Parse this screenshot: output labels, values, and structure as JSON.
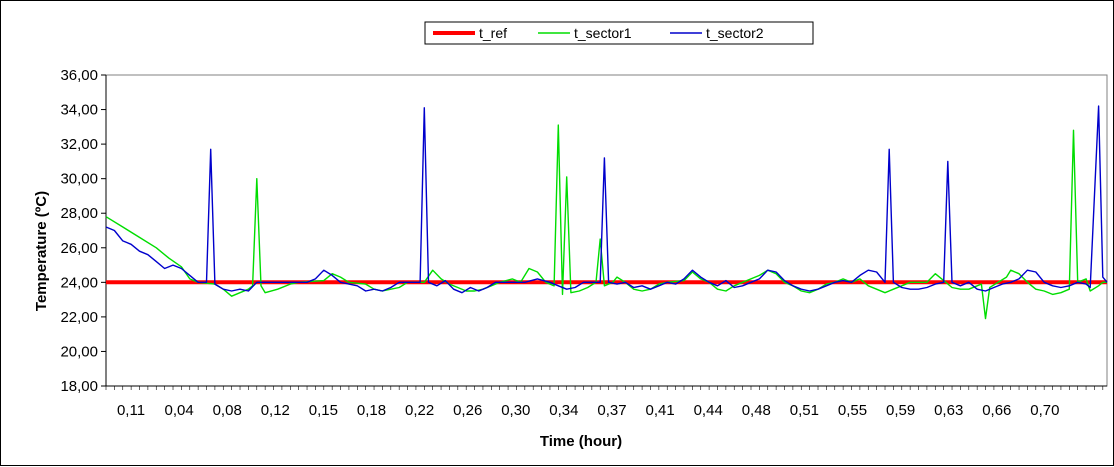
{
  "chart_data": {
    "type": "line",
    "title": "",
    "xlabel": "Time (hour)",
    "ylabel": "Temperature (ºC)",
    "ylim": [
      18,
      36
    ],
    "ytick_step": 2,
    "yticks": [
      "18,00",
      "20,00",
      "22,00",
      "24,00",
      "26,00",
      "28,00",
      "30,00",
      "32,00",
      "34,00",
      "36,00"
    ],
    "xtick_labels": [
      "0,11",
      "0,04",
      "0,08",
      "0,12",
      "0,15",
      "0,18",
      "0,22",
      "0,26",
      "0,30",
      "0,34",
      "0,37",
      "0,41",
      "0,44",
      "0,48",
      "0,51",
      "0,55",
      "0,59",
      "0,63",
      "0,66",
      "0,70"
    ],
    "n_samples": 240,
    "grid": false,
    "legend_position": "top-center",
    "series": [
      {
        "name": "t_ref",
        "color": "#ff0000",
        "style": "thick",
        "points": [
          [
            0,
            24.0
          ],
          [
            239,
            24.0
          ]
        ]
      },
      {
        "name": "t_sector1",
        "color": "#00dd00",
        "style": "thin",
        "points": [
          [
            0,
            27.8
          ],
          [
            4,
            27.2
          ],
          [
            8,
            26.6
          ],
          [
            12,
            26.0
          ],
          [
            15,
            25.4
          ],
          [
            18,
            24.9
          ],
          [
            20,
            24.2
          ],
          [
            22,
            24.0
          ],
          [
            26,
            23.9
          ],
          [
            28,
            23.6
          ],
          [
            30,
            23.2
          ],
          [
            32,
            23.4
          ],
          [
            34,
            23.6
          ],
          [
            35,
            23.8
          ],
          [
            36,
            30.0
          ],
          [
            37,
            23.8
          ],
          [
            38,
            23.4
          ],
          [
            41,
            23.6
          ],
          [
            44,
            23.9
          ],
          [
            46,
            24.0
          ],
          [
            52,
            24.1
          ],
          [
            54,
            24.5
          ],
          [
            56,
            24.3
          ],
          [
            58,
            24.0
          ],
          [
            62,
            23.9
          ],
          [
            64,
            23.6
          ],
          [
            66,
            23.5
          ],
          [
            68,
            23.6
          ],
          [
            70,
            23.7
          ],
          [
            72,
            24.0
          ],
          [
            76,
            24.0
          ],
          [
            78,
            24.7
          ],
          [
            80,
            24.2
          ],
          [
            82,
            23.9
          ],
          [
            84,
            23.7
          ],
          [
            86,
            23.5
          ],
          [
            88,
            23.5
          ],
          [
            90,
            23.6
          ],
          [
            92,
            23.8
          ],
          [
            94,
            24.0
          ],
          [
            97,
            24.2
          ],
          [
            99,
            24.0
          ],
          [
            101,
            24.8
          ],
          [
            103,
            24.6
          ],
          [
            105,
            24.0
          ],
          [
            107,
            23.8
          ],
          [
            108,
            33.1
          ],
          [
            109,
            23.3
          ],
          [
            110,
            30.1
          ],
          [
            111,
            23.4
          ],
          [
            113,
            23.5
          ],
          [
            115,
            23.7
          ],
          [
            117,
            24.0
          ],
          [
            118,
            26.5
          ],
          [
            119,
            23.8
          ],
          [
            121,
            24.0
          ],
          [
            122,
            24.3
          ],
          [
            124,
            24.0
          ],
          [
            126,
            23.6
          ],
          [
            128,
            23.5
          ],
          [
            130,
            23.6
          ],
          [
            132,
            23.9
          ],
          [
            134,
            24.0
          ],
          [
            138,
            24.1
          ],
          [
            140,
            24.6
          ],
          [
            142,
            24.2
          ],
          [
            144,
            24.0
          ],
          [
            146,
            23.6
          ],
          [
            148,
            23.5
          ],
          [
            150,
            23.8
          ],
          [
            152,
            24.0
          ],
          [
            156,
            24.4
          ],
          [
            158,
            24.7
          ],
          [
            160,
            24.5
          ],
          [
            162,
            24.0
          ],
          [
            164,
            23.8
          ],
          [
            166,
            23.5
          ],
          [
            168,
            23.4
          ],
          [
            170,
            23.6
          ],
          [
            172,
            23.9
          ],
          [
            174,
            24.0
          ],
          [
            176,
            24.2
          ],
          [
            178,
            24.0
          ],
          [
            180,
            24.2
          ],
          [
            182,
            23.8
          ],
          [
            184,
            23.6
          ],
          [
            186,
            23.4
          ],
          [
            188,
            23.6
          ],
          [
            190,
            23.8
          ],
          [
            192,
            24.0
          ],
          [
            196,
            24.0
          ],
          [
            198,
            24.5
          ],
          [
            200,
            24.1
          ],
          [
            202,
            23.7
          ],
          [
            204,
            23.6
          ],
          [
            206,
            23.6
          ],
          [
            208,
            23.8
          ],
          [
            209,
            23.9
          ],
          [
            210,
            21.9
          ],
          [
            211,
            23.7
          ],
          [
            213,
            24.0
          ],
          [
            215,
            24.3
          ],
          [
            216,
            24.7
          ],
          [
            218,
            24.5
          ],
          [
            220,
            24.0
          ],
          [
            222,
            23.6
          ],
          [
            224,
            23.5
          ],
          [
            226,
            23.3
          ],
          [
            228,
            23.4
          ],
          [
            230,
            23.6
          ],
          [
            231,
            32.8
          ],
          [
            232,
            24.0
          ],
          [
            234,
            24.2
          ],
          [
            235,
            23.5
          ],
          [
            237,
            23.8
          ],
          [
            238,
            24.0
          ],
          [
            239,
            24.0
          ]
        ]
      },
      {
        "name": "t_sector2",
        "color": "#0000cc",
        "style": "thin",
        "points": [
          [
            0,
            27.2
          ],
          [
            2,
            27.0
          ],
          [
            4,
            26.4
          ],
          [
            6,
            26.2
          ],
          [
            8,
            25.8
          ],
          [
            10,
            25.6
          ],
          [
            12,
            25.2
          ],
          [
            14,
            24.8
          ],
          [
            16,
            25.0
          ],
          [
            18,
            24.8
          ],
          [
            20,
            24.4
          ],
          [
            22,
            24.0
          ],
          [
            24,
            24.0
          ],
          [
            25,
            31.7
          ],
          [
            26,
            23.9
          ],
          [
            28,
            23.6
          ],
          [
            30,
            23.5
          ],
          [
            32,
            23.6
          ],
          [
            34,
            23.5
          ],
          [
            36,
            24.0
          ],
          [
            40,
            24.0
          ],
          [
            48,
            24.0
          ],
          [
            50,
            24.2
          ],
          [
            52,
            24.7
          ],
          [
            54,
            24.4
          ],
          [
            56,
            24.0
          ],
          [
            60,
            23.8
          ],
          [
            62,
            23.5
          ],
          [
            64,
            23.6
          ],
          [
            66,
            23.5
          ],
          [
            68,
            23.7
          ],
          [
            70,
            24.0
          ],
          [
            75,
            24.0
          ],
          [
            76,
            34.1
          ],
          [
            77,
            24.0
          ],
          [
            79,
            23.8
          ],
          [
            81,
            24.1
          ],
          [
            83,
            23.6
          ],
          [
            85,
            23.4
          ],
          [
            87,
            23.7
          ],
          [
            89,
            23.5
          ],
          [
            91,
            23.7
          ],
          [
            93,
            24.0
          ],
          [
            100,
            24.0
          ],
          [
            103,
            24.2
          ],
          [
            106,
            24.0
          ],
          [
            108,
            23.8
          ],
          [
            110,
            23.6
          ],
          [
            112,
            23.7
          ],
          [
            114,
            24.0
          ],
          [
            118,
            24.0
          ],
          [
            119,
            31.2
          ],
          [
            120,
            24.0
          ],
          [
            122,
            23.9
          ],
          [
            124,
            24.0
          ],
          [
            126,
            23.7
          ],
          [
            128,
            23.8
          ],
          [
            130,
            23.6
          ],
          [
            132,
            23.8
          ],
          [
            134,
            24.0
          ],
          [
            136,
            23.9
          ],
          [
            138,
            24.2
          ],
          [
            140,
            24.7
          ],
          [
            142,
            24.3
          ],
          [
            144,
            24.0
          ],
          [
            146,
            23.8
          ],
          [
            148,
            24.1
          ],
          [
            150,
            23.7
          ],
          [
            152,
            23.8
          ],
          [
            154,
            24.0
          ],
          [
            156,
            24.2
          ],
          [
            158,
            24.7
          ],
          [
            160,
            24.6
          ],
          [
            162,
            24.1
          ],
          [
            164,
            23.8
          ],
          [
            166,
            23.6
          ],
          [
            168,
            23.5
          ],
          [
            170,
            23.6
          ],
          [
            172,
            23.8
          ],
          [
            174,
            24.0
          ],
          [
            176,
            24.1
          ],
          [
            178,
            24.0
          ],
          [
            180,
            24.4
          ],
          [
            182,
            24.7
          ],
          [
            184,
            24.6
          ],
          [
            186,
            24.0
          ],
          [
            187,
            31.7
          ],
          [
            188,
            24.0
          ],
          [
            190,
            23.7
          ],
          [
            192,
            23.6
          ],
          [
            194,
            23.6
          ],
          [
            196,
            23.7
          ],
          [
            198,
            23.9
          ],
          [
            200,
            24.0
          ],
          [
            201,
            31.0
          ],
          [
            202,
            24.0
          ],
          [
            204,
            23.8
          ],
          [
            206,
            24.0
          ],
          [
            208,
            23.6
          ],
          [
            210,
            23.5
          ],
          [
            212,
            23.7
          ],
          [
            214,
            23.9
          ],
          [
            216,
            24.0
          ],
          [
            218,
            24.2
          ],
          [
            220,
            24.7
          ],
          [
            222,
            24.6
          ],
          [
            224,
            24.0
          ],
          [
            226,
            23.8
          ],
          [
            228,
            23.7
          ],
          [
            230,
            23.8
          ],
          [
            232,
            24.0
          ],
          [
            234,
            23.9
          ],
          [
            235,
            23.7
          ],
          [
            237,
            34.2
          ],
          [
            238,
            24.3
          ],
          [
            239,
            24.0
          ]
        ]
      }
    ]
  }
}
